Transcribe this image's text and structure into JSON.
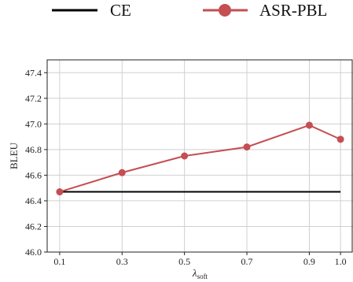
{
  "chart_data": {
    "type": "line",
    "x": [
      0.1,
      0.3,
      0.5,
      0.7,
      0.9,
      1.0
    ],
    "x_tick_labels": [
      "0.1",
      "0.3",
      "0.5",
      "0.7",
      "0.9",
      "1.0"
    ],
    "series": [
      {
        "name": "CE",
        "values": [
          46.47,
          46.47,
          46.47,
          46.47,
          46.47,
          46.47
        ],
        "color": "#000000",
        "markers": false
      },
      {
        "name": "ASR-PBL",
        "values": [
          46.47,
          46.62,
          46.75,
          46.82,
          46.99,
          46.88
        ],
        "color": "#c44e52",
        "markers": true
      }
    ],
    "y_ticks": [
      46.0,
      46.2,
      46.4,
      46.6,
      46.8,
      47.0,
      47.2,
      47.4
    ],
    "y_tick_labels": [
      "46.0",
      "46.2",
      "46.4",
      "46.6",
      "46.8",
      "47.0",
      "47.2",
      "47.4"
    ],
    "ylim": [
      46.0,
      47.5
    ],
    "xlim": [
      0.06,
      1.04
    ],
    "xlabel_main": "λ",
    "xlabel_sub": "soft",
    "ylabel": "BLEU",
    "grid": true,
    "legend_position": "top"
  }
}
